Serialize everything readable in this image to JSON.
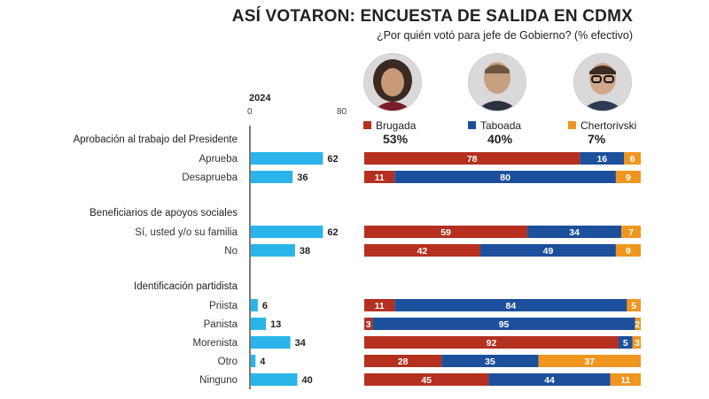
{
  "title": "ASÍ VOTARON: ENCUESTA DE SALIDA EN CDMX",
  "subtitle": "¿Por quién votó para jefe de Gobierno? (% efectivo)",
  "year_label": "2024",
  "candidates": [
    {
      "name": "Brugada",
      "pct": "53%",
      "color": "#b5301f"
    },
    {
      "name": "Taboada",
      "pct": "40%",
      "color": "#1c4f9c"
    },
    {
      "name": "Chertorivski",
      "pct": "7%",
      "color": "#f0961f"
    }
  ],
  "chart_data": {
    "type": "bar",
    "title": "ASÍ VOTARON: ENCUESTA DE SALIDA EN CDMX",
    "subtitle": "¿Por quién votó para jefe de Gobierno? (% efectivo)",
    "share_axis": {
      "ticks": [
        "0",
        "80"
      ],
      "range": [
        0,
        80
      ]
    },
    "share_color": "#2ab4ea",
    "groups": [
      {
        "label": "Aprobación al trabajo del Presidente",
        "rows": [
          {
            "label": "Aprueba",
            "share": 62,
            "vote": [
              78,
              16,
              6
            ]
          },
          {
            "label": "Desaprueba",
            "share": 36,
            "vote": [
              11,
              80,
              9
            ]
          }
        ]
      },
      {
        "label": "Beneficiarios de apoyos sociales",
        "rows": [
          {
            "label": "Sí, usted y/o su familia",
            "share": 62,
            "vote": [
              59,
              34,
              7
            ]
          },
          {
            "label": "No",
            "share": 38,
            "vote": [
              42,
              49,
              9
            ]
          }
        ]
      },
      {
        "label": "Identificación partidista",
        "rows": [
          {
            "label": "Priista",
            "share": 6,
            "vote": [
              11,
              84,
              5
            ]
          },
          {
            "label": "Panista",
            "share": 13,
            "vote": [
              3,
              95,
              2
            ]
          },
          {
            "label": "Morenista",
            "share": 34,
            "vote": [
              92,
              5,
              3
            ]
          },
          {
            "label": "Otro",
            "share": 4,
            "vote": [
              28,
              35,
              37
            ]
          },
          {
            "label": "Ninguno",
            "share": 40,
            "vote": [
              45,
              44,
              11
            ]
          }
        ]
      }
    ],
    "vote_series": [
      "Brugada",
      "Taboada",
      "Chertorivski"
    ]
  }
}
